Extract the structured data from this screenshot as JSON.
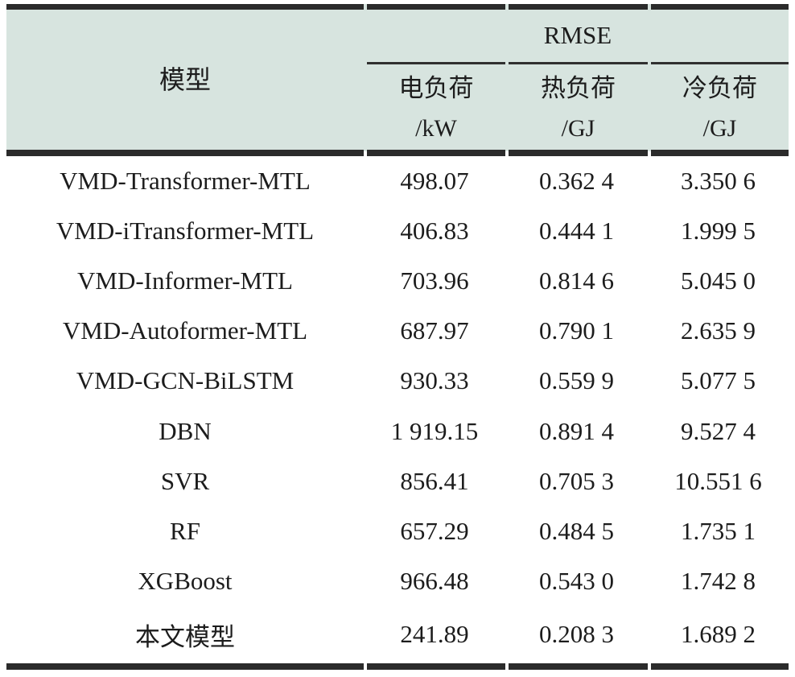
{
  "table": {
    "model_header": "模型",
    "group_header": "RMSE",
    "columns": [
      {
        "name": "电负荷",
        "unit": "/kW"
      },
      {
        "name": "热负荷",
        "unit": "/GJ"
      },
      {
        "name": "冷负荷",
        "unit": "/GJ"
      }
    ],
    "rows": [
      {
        "model": "VMD-Transformer-MTL",
        "elec": "498.07",
        "heat": "0.362 4",
        "cool": "3.350 6"
      },
      {
        "model": "VMD-iTransformer-MTL",
        "elec": "406.83",
        "heat": "0.444 1",
        "cool": "1.999 5"
      },
      {
        "model": "VMD-Informer-MTL",
        "elec": "703.96",
        "heat": "0.814 6",
        "cool": "5.045 0"
      },
      {
        "model": "VMD-Autoformer-MTL",
        "elec": "687.97",
        "heat": "0.790 1",
        "cool": "2.635 9"
      },
      {
        "model": "VMD-GCN-BiLSTM",
        "elec": "930.33",
        "heat": "0.559 9",
        "cool": "5.077 5"
      },
      {
        "model": "DBN",
        "elec": "1 919.15",
        "heat": "0.891 4",
        "cool": "9.527 4"
      },
      {
        "model": "SVR",
        "elec": "856.41",
        "heat": "0.705 3",
        "cool": "10.551 6"
      },
      {
        "model": "RF",
        "elec": "657.29",
        "heat": "0.484 5",
        "cool": "1.735 1"
      },
      {
        "model": "XGBoost",
        "elec": "966.48",
        "heat": "0.543 0",
        "cool": "1.742 8"
      },
      {
        "model": "本文模型",
        "elec": "241.89",
        "heat": "0.208 3",
        "cool": "1.689 2"
      }
    ]
  },
  "colors": {
    "header_bg": "#d7e4df",
    "border": "#2b2b2b",
    "text": "#1c1c1c"
  }
}
